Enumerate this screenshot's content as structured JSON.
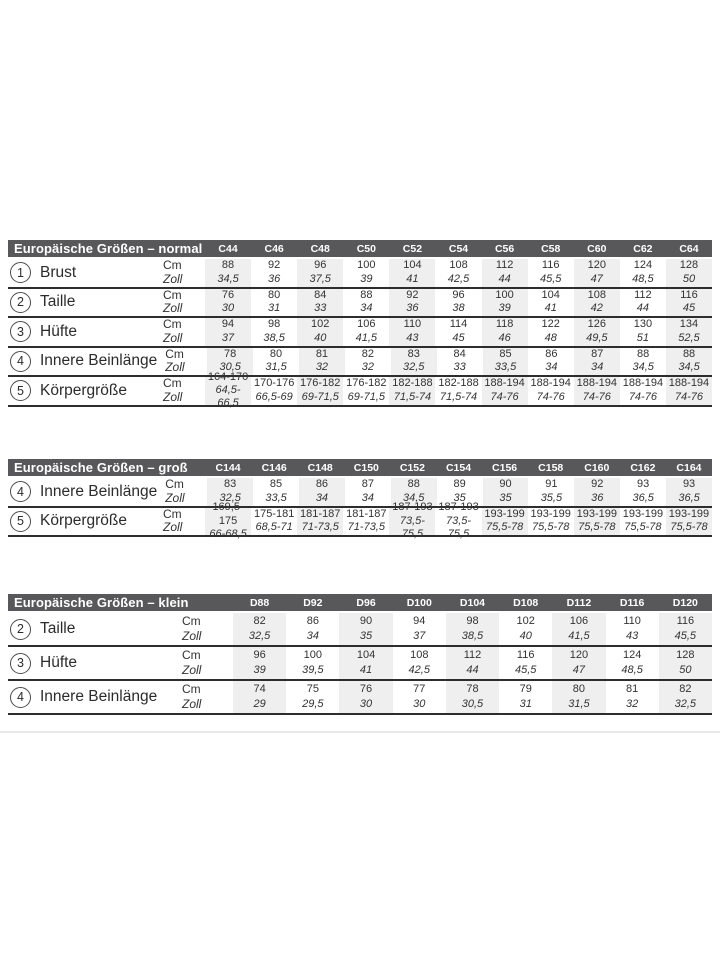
{
  "colors": {
    "header_bar": "#58585a",
    "header_text": "#ffffff",
    "column_stripe": "#efefef",
    "rule_dark": "#2d2d2d",
    "text": "#333333"
  },
  "units": {
    "cm": "Cm",
    "zoll": "Zoll"
  },
  "tables": [
    {
      "id": "normal",
      "title": "Europäische Größen – normal",
      "columns": [
        "C44",
        "C46",
        "C48",
        "C50",
        "C52",
        "C54",
        "C56",
        "C58",
        "C60",
        "C62",
        "C64"
      ],
      "rows": [
        {
          "num": "1",
          "label": "Brust",
          "cm": [
            "88",
            "92",
            "96",
            "100",
            "104",
            "108",
            "112",
            "116",
            "120",
            "124",
            "128"
          ],
          "zoll": [
            "34,5",
            "36",
            "37,5",
            "39",
            "41",
            "42,5",
            "44",
            "45,5",
            "47",
            "48,5",
            "50"
          ]
        },
        {
          "num": "2",
          "label": "Taille",
          "cm": [
            "76",
            "80",
            "84",
            "88",
            "92",
            "96",
            "100",
            "104",
            "108",
            "112",
            "116"
          ],
          "zoll": [
            "30",
            "31",
            "33",
            "34",
            "36",
            "38",
            "39",
            "41",
            "42",
            "44",
            "45"
          ]
        },
        {
          "num": "3",
          "label": "Hüfte",
          "cm": [
            "94",
            "98",
            "102",
            "106",
            "110",
            "114",
            "118",
            "122",
            "126",
            "130",
            "134"
          ],
          "zoll": [
            "37",
            "38,5",
            "40",
            "41,5",
            "43",
            "45",
            "46",
            "48",
            "49,5",
            "51",
            "52,5"
          ]
        },
        {
          "num": "4",
          "label": "Innere Beinlänge",
          "cm": [
            "78",
            "80",
            "81",
            "82",
            "83",
            "84",
            "85",
            "86",
            "87",
            "88",
            "88"
          ],
          "zoll": [
            "30,5",
            "31,5",
            "32",
            "32",
            "32,5",
            "33",
            "33,5",
            "34",
            "34",
            "34,5",
            "34,5"
          ]
        },
        {
          "num": "5",
          "label": "Körpergröße",
          "cm": [
            "164-170",
            "170-176",
            "176-182",
            "176-182",
            "182-188",
            "182-188",
            "188-194",
            "188-194",
            "188-194",
            "188-194",
            "188-194"
          ],
          "zoll": [
            "64,5-66,5",
            "66,5-69",
            "69-71,5",
            "69-71,5",
            "71,5-74",
            "71,5-74",
            "74-76",
            "74-76",
            "74-76",
            "74-76",
            "74-76"
          ]
        }
      ]
    },
    {
      "id": "gross",
      "title": "Europäische Größen – groß",
      "columns": [
        "C144",
        "C146",
        "C148",
        "C150",
        "C152",
        "C154",
        "C156",
        "C158",
        "C160",
        "C162",
        "C164"
      ],
      "rows": [
        {
          "num": "4",
          "label": "Innere Beinlänge",
          "cm": [
            "83",
            "85",
            "86",
            "87",
            "88",
            "89",
            "90",
            "91",
            "92",
            "93",
            "93"
          ],
          "zoll": [
            "32,5",
            "33,5",
            "34",
            "34",
            "34,5",
            "35",
            "35",
            "35,5",
            "36",
            "36,5",
            "36,5"
          ]
        },
        {
          "num": "5",
          "label": "Körpergröße",
          "cm": [
            "169,5-175",
            "175-181",
            "181-187",
            "181-187",
            "187-193",
            "187-193",
            "193-199",
            "193-199",
            "193-199",
            "193-199",
            "193-199"
          ],
          "zoll": [
            "66-68,5",
            "68,5-71",
            "71-73,5",
            "71-73,5",
            "73,5-75,5",
            "73,5-75,5",
            "75,5-78",
            "75,5-78",
            "75,5-78",
            "75,5-78",
            "75,5-78"
          ]
        }
      ]
    },
    {
      "id": "klein",
      "title": "Europäische Größen – klein",
      "columns": [
        "D88",
        "D92",
        "D96",
        "D100",
        "D104",
        "D108",
        "D112",
        "D116",
        "D120"
      ],
      "rows": [
        {
          "num": "2",
          "label": "Taille",
          "cm": [
            "82",
            "86",
            "90",
            "94",
            "98",
            "102",
            "106",
            "110",
            "116"
          ],
          "zoll": [
            "32,5",
            "34",
            "35",
            "37",
            "38,5",
            "40",
            "41,5",
            "43",
            "45,5"
          ]
        },
        {
          "num": "3",
          "label": "Hüfte",
          "cm": [
            "96",
            "100",
            "104",
            "108",
            "112",
            "116",
            "120",
            "124",
            "128"
          ],
          "zoll": [
            "39",
            "39,5",
            "41",
            "42,5",
            "44",
            "45,5",
            "47",
            "48,5",
            "50"
          ]
        },
        {
          "num": "4",
          "label": "Innere Beinlänge",
          "cm": [
            "74",
            "75",
            "76",
            "77",
            "78",
            "79",
            "80",
            "81",
            "82"
          ],
          "zoll": [
            "29",
            "29,5",
            "30",
            "30",
            "30,5",
            "31",
            "31,5",
            "32",
            "32,5"
          ]
        }
      ]
    }
  ]
}
